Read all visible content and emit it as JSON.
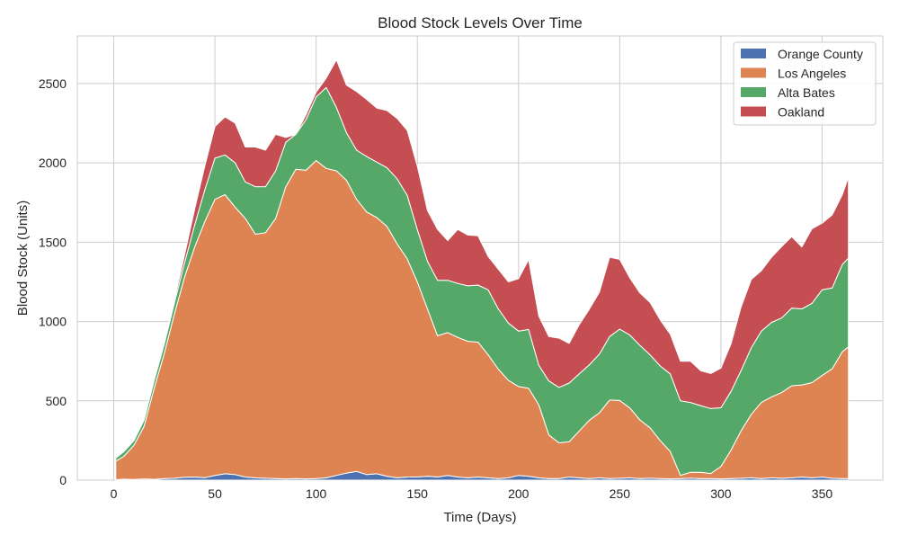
{
  "chart_data": {
    "type": "area",
    "stacked": true,
    "title": "Blood Stock Levels Over Time",
    "xlabel": "Time (Days)",
    "ylabel": "Blood Stock (Units)",
    "xlim": [
      -18,
      380
    ],
    "ylim": [
      0,
      2800
    ],
    "xticks": [
      0,
      50,
      100,
      150,
      200,
      250,
      300,
      350
    ],
    "yticks": [
      0,
      500,
      1000,
      1500,
      2000,
      2500
    ],
    "grid": true,
    "legend_position": "top-right",
    "x": [
      1,
      5,
      10,
      15,
      20,
      25,
      30,
      35,
      40,
      45,
      50,
      55,
      60,
      65,
      70,
      75,
      80,
      85,
      90,
      95,
      100,
      105,
      110,
      115,
      120,
      125,
      130,
      135,
      140,
      145,
      150,
      155,
      160,
      165,
      170,
      175,
      180,
      185,
      190,
      195,
      200,
      205,
      210,
      215,
      220,
      225,
      230,
      235,
      240,
      245,
      250,
      255,
      260,
      265,
      270,
      275,
      280,
      285,
      290,
      295,
      300,
      305,
      310,
      315,
      320,
      325,
      330,
      335,
      340,
      345,
      350,
      355,
      360,
      363
    ],
    "series": [
      {
        "name": "Orange County",
        "color": "#4c72b0",
        "values": [
          3,
          6,
          4,
          8,
          5,
          10,
          12,
          18,
          20,
          16,
          30,
          40,
          35,
          20,
          15,
          12,
          10,
          8,
          10,
          8,
          10,
          15,
          30,
          45,
          55,
          35,
          40,
          25,
          15,
          20,
          20,
          25,
          20,
          30,
          20,
          15,
          20,
          15,
          10,
          15,
          30,
          25,
          15,
          10,
          10,
          20,
          15,
          10,
          15,
          10,
          12,
          15,
          10,
          12,
          10,
          8,
          10,
          12,
          10,
          10,
          8,
          10,
          12,
          15,
          10,
          15,
          12,
          15,
          20,
          15,
          20,
          12,
          10,
          10
        ]
      },
      {
        "name": "Los Angeles",
        "color": "#dd8452",
        "values": [
          117,
          144,
          216,
          332,
          575,
          790,
          1038,
          1262,
          1450,
          1614,
          1740,
          1760,
          1685,
          1630,
          1535,
          1548,
          1640,
          1842,
          1950,
          1945,
          2005,
          1950,
          1920,
          1845,
          1715,
          1655,
          1615,
          1575,
          1475,
          1375,
          1230,
          1055,
          890,
          900,
          880,
          860,
          850,
          775,
          690,
          615,
          560,
          555,
          460,
          275,
          225,
          222,
          295,
          368,
          410,
          495,
          490,
          440,
          370,
          318,
          240,
          172,
          20,
          38,
          40,
          32,
          78,
          180,
          300,
          400,
          480,
          510,
          540,
          580,
          580,
          600,
          640,
          690,
          800,
          830
        ]
      },
      {
        "name": "Alta Bates",
        "color": "#55a868",
        "values": [
          20,
          30,
          30,
          40,
          50,
          60,
          70,
          90,
          140,
          200,
          260,
          250,
          280,
          230,
          300,
          290,
          300,
          280,
          220,
          320,
          400,
          510,
          400,
          300,
          310,
          350,
          350,
          370,
          410,
          400,
          330,
          300,
          350,
          330,
          340,
          350,
          360,
          410,
          380,
          360,
          350,
          370,
          250,
          340,
          350,
          370,
          360,
          350,
          370,
          400,
          450,
          460,
          470,
          460,
          470,
          490,
          470,
          440,
          420,
          410,
          370,
          370,
          380,
          420,
          450,
          470,
          470,
          490,
          480,
          500,
          540,
          510,
          550,
          560
        ]
      },
      {
        "name": "Oakland",
        "color": "#c44e52",
        "values": [
          0,
          0,
          0,
          0,
          0,
          0,
          20,
          50,
          100,
          150,
          200,
          240,
          250,
          220,
          250,
          230,
          230,
          30,
          0,
          30,
          30,
          60,
          300,
          300,
          370,
          360,
          340,
          360,
          380,
          410,
          400,
          320,
          320,
          250,
          340,
          320,
          310,
          210,
          250,
          260,
          330,
          440,
          310,
          280,
          310,
          250,
          310,
          350,
          390,
          500,
          440,
          360,
          330,
          330,
          290,
          250,
          250,
          260,
          220,
          220,
          250,
          300,
          400,
          430,
          380,
          410,
          450,
          450,
          390,
          470,
          420,
          460,
          440,
          510
        ]
      }
    ]
  }
}
